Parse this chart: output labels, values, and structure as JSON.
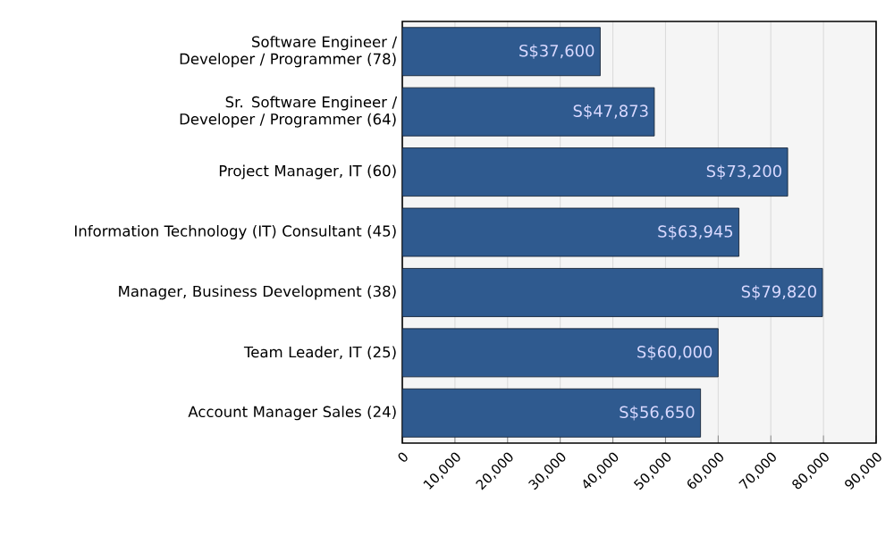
{
  "chart_data": {
    "type": "bar",
    "orientation": "horizontal",
    "categories": [
      "Software Engineer / Developer / Programmer (78)",
      "Sr. Software Engineer / Developer / Programmer (64)",
      "Project Manager, IT (60)",
      "Information Technology (IT) Consultant (45)",
      "Manager, Business Development (38)",
      "Team Leader, IT (25)",
      "Account Manager Sales (24)"
    ],
    "values": [
      37600,
      47873,
      73200,
      63945,
      79820,
      60000,
      56650
    ],
    "value_labels": [
      "S$37,600",
      "S$47,873",
      "S$73,200",
      "S$63,945",
      "S$79,820",
      "S$60,000",
      "S$56,650"
    ],
    "color": "#2f5a8f",
    "xlim": [
      0,
      90000
    ],
    "xticks": [
      0,
      {
        "value": 10000,
        "label": "10,000"
      },
      {
        "value": 20000,
        "label": "20,000"
      },
      {
        "value": 30000,
        "label": "30,000"
      },
      {
        "value": 40000,
        "label": "40,000"
      },
      {
        "value": 50000,
        "label": "50,000"
      },
      {
        "value": 60000,
        "label": "60,000"
      },
      {
        "value": 70000,
        "label": "70,000"
      },
      {
        "value": 80000,
        "label": "80,000"
      },
      {
        "value": 90000,
        "label": "90,000"
      }
    ],
    "grid": "x"
  }
}
